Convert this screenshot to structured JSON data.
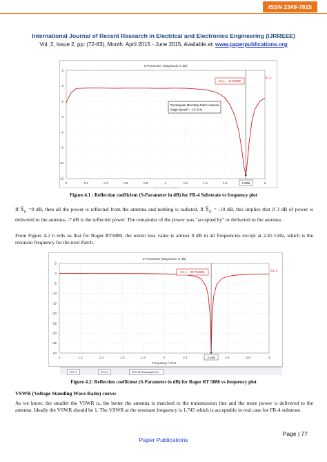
{
  "header": {
    "issn": "ISSN 2349-7815",
    "journal": "International Journal of Recent Research in Electrical and Electronics Engineering (IJRREEE)",
    "vol_prefix": "Vol. 2, Issue 2, pp: (72-83), Month: April 2015 - June 2015, Available at: ",
    "url": "www.paperpublications.org"
  },
  "figure1": {
    "caption": "Figure 4.1 : Reflection coefficient (S-Parameter in dB) for FR-4 Substrate vs frequency plot"
  },
  "para1": {
    "t1": "If ",
    "s": "S",
    "sub": "11",
    "t2": " =0 dB, then all the power is reflected from the antenna and nothing is radiated. If ",
    "t3": " = -10 dB, this implies that if 3 dB of power is delivered to the antenna, -7 dB is the reflected power. The remainder of the power was \"accepted by\" or delivered to the antenna."
  },
  "para2": {
    "t1": "From Figure ",
    "ref": "4.2",
    "t2": " it tells us that for Roger RT5880, the return loss value is almost 0 dB in all frequencies except at 2.45 GHz, which is the resonant frequency for the next Patch."
  },
  "figure2": {
    "caption": "Figure 4.2: Reflection coefficient (S-Parameter in dB) for Roger RT 5880 vs frequency plot",
    "tabs": [
      "RT2.2",
      "RT2.2",
      "RT2.3D Results(S-Pa..."
    ]
  },
  "section": {
    "heading": "VSWR (Voltage Standing Wave Ratio) curve:",
    "text": "As we know, the smaller the VSWR is, the better the antenna is matched to the transmission line and the more power is delivered to the antenna. Ideally the VSWR should be 1. The VSWR at the resonant frequency is 1.745 which is acceptable in real case for FR-4 substrate."
  },
  "footer": {
    "page": "Page | 77",
    "publisher": "Paper Publications"
  },
  "chart_data": [
    {
      "type": "line",
      "title": "S-Parameter [Magnitude in dB]",
      "xlabel": "Frequency / GHz",
      "ylabel": "",
      "xlim": [
        0,
        2
      ],
      "ylim": [
        -12,
        2
      ],
      "x_ticks": [
        "0",
        "0.2",
        "0.4",
        "0.6",
        "0.8",
        "1",
        "1.2",
        "1.4",
        "1.6",
        "1.8",
        "2"
      ],
      "y_ticks": [
        "2",
        "0",
        "-2",
        "-4",
        "-6",
        "-8",
        "-10",
        "-12"
      ],
      "marker_x_label": "1.808",
      "marker_label": "S1,1 : -11.55965",
      "annotation": [
        "Rectangular Microstrip Patch Antenna",
        "Single band fr = 1.8 GHz"
      ],
      "series": [
        {
          "name": "S1,1",
          "color": "#d21e1e",
          "x": [
            0,
            0.02,
            0.05,
            0.1,
            0.2,
            0.3,
            0.4,
            0.5,
            0.6,
            0.7,
            0.8,
            0.9,
            1.0,
            1.1,
            1.2,
            1.3,
            1.4,
            1.5,
            1.55,
            1.6,
            1.65,
            1.7,
            1.74,
            1.77,
            1.79,
            1.808,
            1.82,
            1.84,
            1.87,
            1.9,
            1.95,
            2.0
          ],
          "y": [
            -2.2,
            -1.6,
            -0.9,
            -0.35,
            -0.3,
            -0.28,
            -0.3,
            -0.32,
            -0.3,
            -0.3,
            -0.3,
            -0.32,
            -0.32,
            -0.3,
            -0.32,
            -0.4,
            -0.5,
            -0.8,
            -1.1,
            -1.6,
            -2.5,
            -4.0,
            -6.0,
            -8.5,
            -10.5,
            -11.55965,
            -10.2,
            -7.5,
            -4.5,
            -3.0,
            -2.0,
            -1.6
          ]
        }
      ]
    },
    {
      "type": "line",
      "title": "S-Parameter [Magnitude in dB]",
      "xlabel": "Frequency / GHz",
      "ylabel": "",
      "xlim": [
        1,
        3
      ],
      "ylim": [
        -40,
        5
      ],
      "x_ticks": [
        "1",
        "1.2",
        "1.4",
        "1.6",
        "1.8",
        "2",
        "2.2",
        "2.4",
        "2.6",
        "2.8",
        "3"
      ],
      "y_ticks": [
        "5",
        "0",
        "-5",
        "-10",
        "-15",
        "-20",
        "-25",
        "-30",
        "-35",
        "-40"
      ],
      "marker_x_label": "2.448",
      "marker_label": "S1,1 : -39.784596",
      "series": [
        {
          "name": "S1,1",
          "color": "#d21e1e",
          "x": [
            1.0,
            1.2,
            1.4,
            1.6,
            1.8,
            2.0,
            2.1,
            2.2,
            2.3,
            2.35,
            2.4,
            2.42,
            2.44,
            2.448,
            2.455,
            2.47,
            2.5,
            2.55,
            2.6,
            2.7,
            2.8,
            2.9,
            3.0
          ],
          "y": [
            -0.05,
            -0.06,
            -0.08,
            -0.1,
            -0.15,
            -0.25,
            -0.4,
            -0.7,
            -1.5,
            -2.6,
            -6.5,
            -11.0,
            -22.0,
            -39.784596,
            -24.0,
            -12.0,
            -5.5,
            -2.6,
            -1.5,
            -0.8,
            -0.5,
            -0.35,
            -0.3
          ]
        }
      ]
    }
  ]
}
